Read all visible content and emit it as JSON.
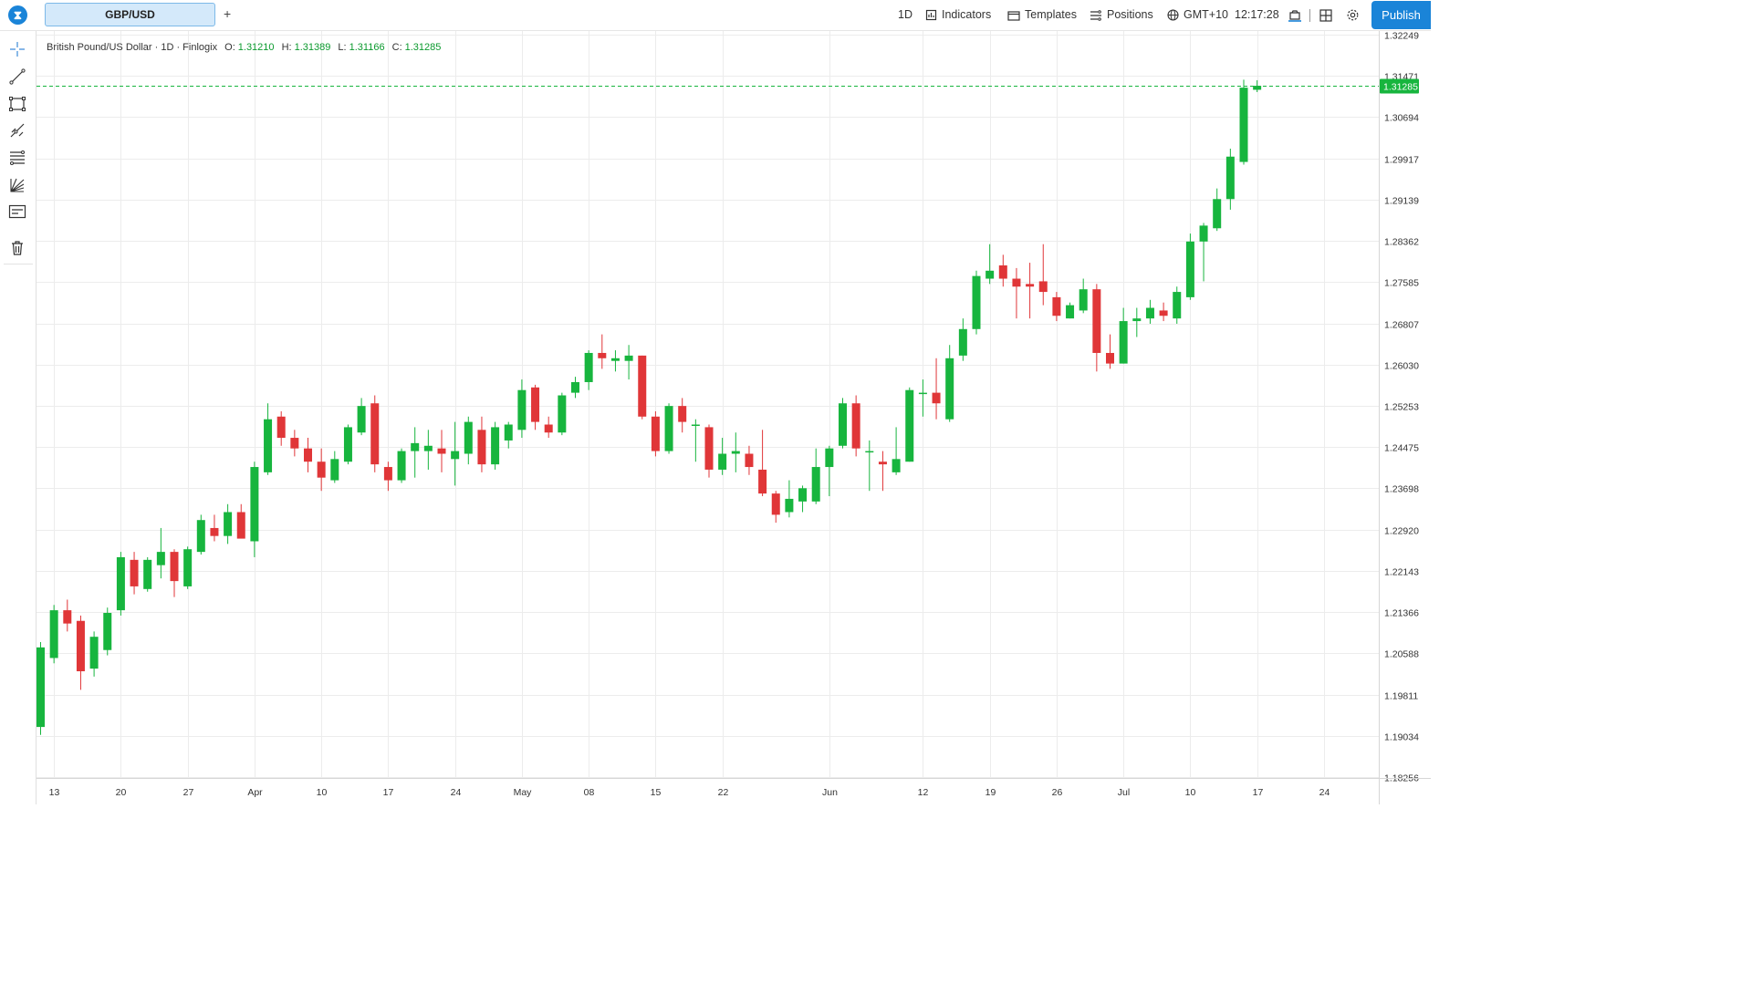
{
  "app": {
    "symbol_tab": "GBP/USD",
    "add_tab": "+",
    "toolbar": {
      "interval": "1D",
      "indicators": "Indicators",
      "templates": "Templates",
      "positions": "Positions",
      "timezone": "GMT+10",
      "clock": "12:17:28",
      "publish": "Publish"
    },
    "legend": {
      "name": "British Pound/US Dollar · 1D · Finlogix",
      "open_label": "O:",
      "open": "1.31210",
      "high_label": "H:",
      "high": "1.31389",
      "low_label": "L:",
      "low": "1.31166",
      "close_label": "C:",
      "close": "1.31285"
    },
    "sidebar_tools": [
      "crosshair-icon",
      "trend-line-icon",
      "rectangle-icon",
      "pitchfork-icon",
      "fib-retracement-icon",
      "gann-fan-icon",
      "text-note-icon",
      "trash-icon"
    ],
    "colors": {
      "up": "#17b53e",
      "down": "#e03638",
      "accent": "#1a84d8",
      "last_price": "#17b53e"
    }
  },
  "chart_data": {
    "type": "candlestick",
    "symbol": "GBP/USD",
    "interval": "1D",
    "ylim": [
      1.18256,
      1.32249
    ],
    "y_ticks": [
      "1.32249",
      "1.31471",
      "1.30694",
      "1.29917",
      "1.29139",
      "1.28362",
      "1.27585",
      "1.26807",
      "1.26030",
      "1.25253",
      "1.24475",
      "1.23698",
      "1.22920",
      "1.22143",
      "1.21366",
      "1.20588",
      "1.19811",
      "1.19034",
      "1.18256"
    ],
    "x_ticks": [
      {
        "label": "13",
        "index": 1
      },
      {
        "label": "20",
        "index": 6
      },
      {
        "label": "27",
        "index": 11
      },
      {
        "label": "Apr",
        "index": 16
      },
      {
        "label": "10",
        "index": 21
      },
      {
        "label": "17",
        "index": 26
      },
      {
        "label": "24",
        "index": 31
      },
      {
        "label": "May",
        "index": 36
      },
      {
        "label": "08",
        "index": 41
      },
      {
        "label": "15",
        "index": 46
      },
      {
        "label": "22",
        "index": 51
      },
      {
        "label": "Jun",
        "index": 59
      },
      {
        "label": "12",
        "index": 66
      },
      {
        "label": "19",
        "index": 71
      },
      {
        "label": "26",
        "index": 76
      },
      {
        "label": "Jul",
        "index": 81
      },
      {
        "label": "10",
        "index": 86
      },
      {
        "label": "17",
        "index": 91
      },
      {
        "label": "24",
        "index": 96
      }
    ],
    "last_price": "1.31285",
    "ohlc": [
      [
        1.192,
        1.208,
        1.1905,
        1.207
      ],
      [
        1.205,
        1.215,
        1.204,
        1.214
      ],
      [
        1.214,
        1.216,
        1.21,
        1.2115
      ],
      [
        1.212,
        1.213,
        1.199,
        1.2025
      ],
      [
        1.203,
        1.21,
        1.2015,
        1.209
      ],
      [
        1.2065,
        1.2145,
        1.2055,
        1.2135
      ],
      [
        1.214,
        1.225,
        1.213,
        1.224
      ],
      [
        1.2235,
        1.225,
        1.217,
        1.2185
      ],
      [
        1.218,
        1.224,
        1.2175,
        1.2235
      ],
      [
        1.2225,
        1.2295,
        1.22,
        1.225
      ],
      [
        1.225,
        1.2255,
        1.2165,
        1.2195
      ],
      [
        1.2185,
        1.226,
        1.218,
        1.2255
      ],
      [
        1.225,
        1.232,
        1.2245,
        1.231
      ],
      [
        1.2295,
        1.232,
        1.227,
        1.228
      ],
      [
        1.228,
        1.234,
        1.2265,
        1.2325
      ],
      [
        1.2325,
        1.234,
        1.2285,
        1.2275
      ],
      [
        1.227,
        1.242,
        1.224,
        1.241
      ],
      [
        1.24,
        1.253,
        1.2395,
        1.25
      ],
      [
        1.2505,
        1.2515,
        1.245,
        1.2465
      ],
      [
        1.2465,
        1.248,
        1.243,
        1.2445
      ],
      [
        1.2445,
        1.2465,
        1.24,
        1.242
      ],
      [
        1.242,
        1.2445,
        1.2365,
        1.239
      ],
      [
        1.2385,
        1.244,
        1.238,
        1.2425
      ],
      [
        1.242,
        1.249,
        1.2415,
        1.2485
      ],
      [
        1.2475,
        1.254,
        1.247,
        1.2525
      ],
      [
        1.253,
        1.2545,
        1.24,
        1.2415
      ],
      [
        1.241,
        1.242,
        1.2365,
        1.2385
      ],
      [
        1.2385,
        1.2445,
        1.238,
        1.244
      ],
      [
        1.244,
        1.2485,
        1.239,
        1.2455
      ],
      [
        1.244,
        1.248,
        1.2405,
        1.245
      ],
      [
        1.2445,
        1.248,
        1.24,
        1.2435
      ],
      [
        1.2425,
        1.2495,
        1.2375,
        1.244
      ],
      [
        1.2435,
        1.2505,
        1.2415,
        1.2495
      ],
      [
        1.248,
        1.2505,
        1.24,
        1.2415
      ],
      [
        1.2415,
        1.2495,
        1.2405,
        1.2485
      ],
      [
        1.246,
        1.2495,
        1.2445,
        1.249
      ],
      [
        1.248,
        1.2575,
        1.2465,
        1.2555
      ],
      [
        1.256,
        1.2565,
        1.248,
        1.2495
      ],
      [
        1.249,
        1.2505,
        1.2465,
        1.2475
      ],
      [
        1.2475,
        1.255,
        1.247,
        1.2545
      ],
      [
        1.255,
        1.258,
        1.254,
        1.257
      ],
      [
        1.257,
        1.263,
        1.2555,
        1.2625
      ],
      [
        1.2625,
        1.266,
        1.2595,
        1.2615
      ],
      [
        1.261,
        1.263,
        1.259,
        1.2615
      ],
      [
        1.261,
        1.264,
        1.2575,
        1.262
      ],
      [
        1.262,
        1.262,
        1.25,
        1.2505
      ],
      [
        1.2505,
        1.2515,
        1.243,
        1.244
      ],
      [
        1.244,
        1.253,
        1.2435,
        1.2525
      ],
      [
        1.2525,
        1.254,
        1.2475,
        1.2495
      ],
      [
        1.249,
        1.25,
        1.242,
        1.249
      ],
      [
        1.2485,
        1.249,
        1.239,
        1.2405
      ],
      [
        1.2405,
        1.2465,
        1.2395,
        1.2435
      ],
      [
        1.2435,
        1.2475,
        1.24,
        1.244
      ],
      [
        1.2435,
        1.245,
        1.2395,
        1.241
      ],
      [
        1.2405,
        1.248,
        1.2355,
        1.236
      ],
      [
        1.236,
        1.2365,
        1.2305,
        1.232
      ],
      [
        1.2325,
        1.2385,
        1.2315,
        1.235
      ],
      [
        1.2345,
        1.2375,
        1.2325,
        1.237
      ],
      [
        1.2345,
        1.2445,
        1.234,
        1.241
      ],
      [
        1.241,
        1.245,
        1.2355,
        1.2445
      ],
      [
        1.245,
        1.254,
        1.2445,
        1.253
      ],
      [
        1.253,
        1.2545,
        1.243,
        1.2445
      ],
      [
        1.244,
        1.246,
        1.2365,
        1.244
      ],
      [
        1.242,
        1.244,
        1.2365,
        1.2415
      ],
      [
        1.24,
        1.2485,
        1.2395,
        1.2425
      ],
      [
        1.242,
        1.256,
        1.242,
        1.2555
      ],
      [
        1.255,
        1.2575,
        1.2505,
        1.255
      ],
      [
        1.255,
        1.2615,
        1.25,
        1.253
      ],
      [
        1.25,
        1.264,
        1.2495,
        1.2615
      ],
      [
        1.262,
        1.269,
        1.261,
        1.267
      ],
      [
        1.267,
        1.278,
        1.266,
        1.277
      ],
      [
        1.2765,
        1.283,
        1.2755,
        1.278
      ],
      [
        1.279,
        1.281,
        1.275,
        1.2765
      ],
      [
        1.2765,
        1.2785,
        1.269,
        1.275
      ],
      [
        1.2755,
        1.2795,
        1.269,
        1.275
      ],
      [
        1.276,
        1.283,
        1.2715,
        1.274
      ],
      [
        1.273,
        1.274,
        1.2685,
        1.2695
      ],
      [
        1.269,
        1.272,
        1.269,
        1.2715
      ],
      [
        1.2705,
        1.2765,
        1.27,
        1.2745
      ],
      [
        1.2745,
        1.2755,
        1.259,
        1.2625
      ],
      [
        1.2625,
        1.266,
        1.2595,
        1.2605
      ],
      [
        1.2605,
        1.271,
        1.2605,
        1.2685
      ],
      [
        1.2685,
        1.271,
        1.2655,
        1.269
      ],
      [
        1.269,
        1.2725,
        1.268,
        1.271
      ],
      [
        1.2705,
        1.272,
        1.2685,
        1.2695
      ],
      [
        1.269,
        1.275,
        1.268,
        1.274
      ],
      [
        1.273,
        1.285,
        1.2725,
        1.2835
      ],
      [
        1.2835,
        1.287,
        1.276,
        1.2865
      ],
      [
        1.286,
        1.2935,
        1.2855,
        1.2915
      ],
      [
        1.2915,
        1.301,
        1.2895,
        1.2995
      ],
      [
        1.2985,
        1.314,
        1.298,
        1.3125
      ],
      [
        1.3121,
        1.31389,
        1.31166,
        1.31285
      ]
    ]
  }
}
